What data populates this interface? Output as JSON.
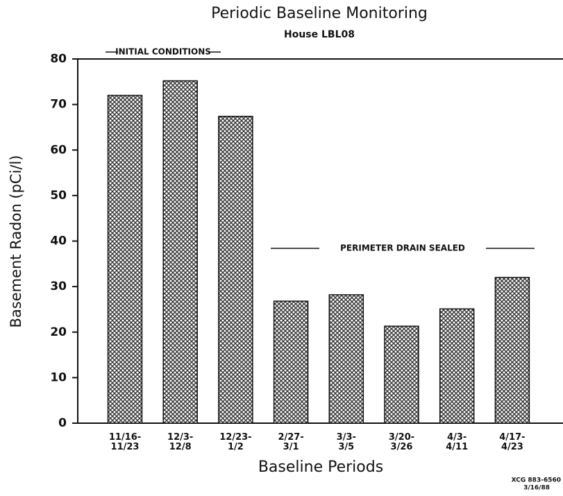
{
  "chart_data": {
    "type": "bar",
    "title": "Periodic Baseline Monitoring",
    "subtitle": "House LBL08",
    "y_label": "Basement Radon (pCi/l)",
    "x_label": "Baseline Periods",
    "categories": [
      "11/16-11/23",
      "12/3-12/8",
      "12/23-1/2",
      "2/27-3/1",
      "3/3-3/5",
      "3/20-3/26",
      "4/3-4/11",
      "4/17-4/23"
    ],
    "values": [
      72,
      75.2,
      67.4,
      26.8,
      28.2,
      21.3,
      25.1,
      32
    ],
    "color": "#333333",
    "ylim": [
      0,
      80
    ],
    "yticks": [
      0,
      10,
      20,
      30,
      40,
      50,
      60,
      70,
      80
    ],
    "annotations": [
      "INITIAL CONDITIONS",
      "PERIMETER DRAIN SEALED"
    ],
    "footnote": [
      "XCG 883-6560",
      "3/16/88"
    ]
  }
}
